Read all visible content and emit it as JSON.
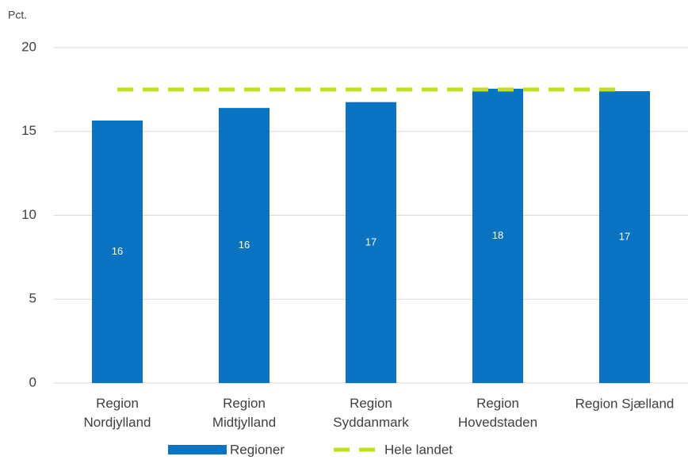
{
  "chart_data": {
    "type": "bar",
    "y_axis_label": "Pct.",
    "categories": [
      "Region Nordjylland",
      "Region Midtjylland",
      "Region Syddanmark",
      "Region Hovedstaden",
      "Region Sjælland"
    ],
    "series": [
      {
        "name": "Regioner",
        "type": "bar",
        "color": "#0a74c2",
        "values": [
          15.65,
          16.4,
          16.75,
          17.55,
          17.4
        ],
        "value_labels": [
          "16",
          "16",
          "17",
          "18",
          "17"
        ]
      },
      {
        "name": "Hele landet",
        "type": "line",
        "color": "#c5e01a",
        "values": [
          17.5,
          17.5,
          17.5,
          17.5,
          17.5
        ]
      }
    ],
    "ylim": [
      0,
      20
    ],
    "yticks": [
      0,
      5,
      10,
      15,
      20
    ],
    "grid": true,
    "legend": "bottom"
  }
}
